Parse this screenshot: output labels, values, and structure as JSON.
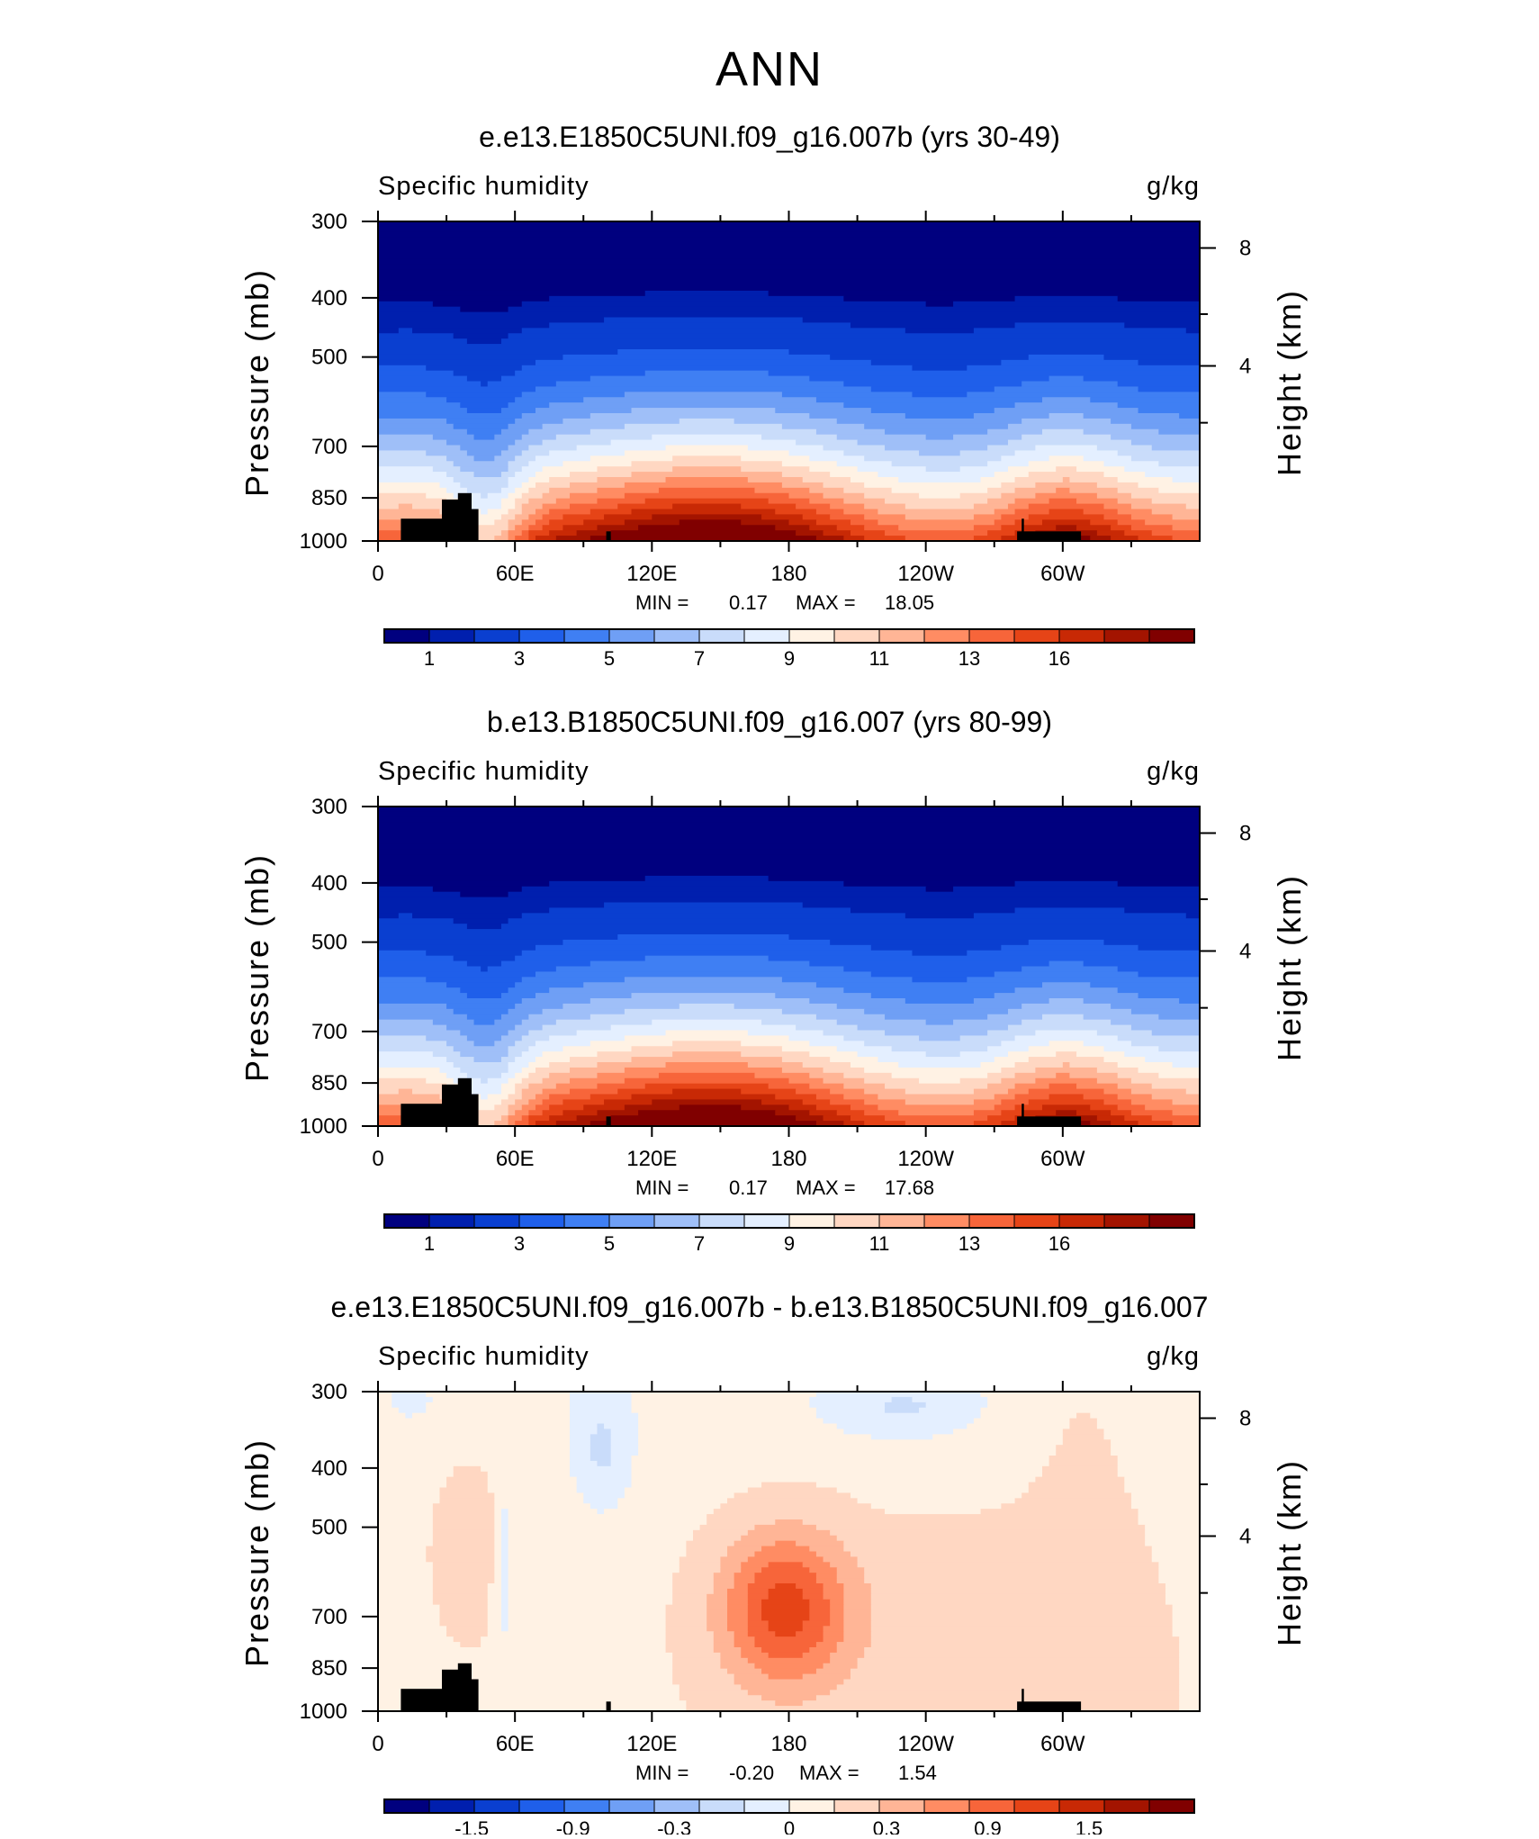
{
  "figure": {
    "title": "ANN"
  },
  "colors": {
    "scale": [
      "#00007f",
      "#001fae",
      "#0a3fd0",
      "#1f5fea",
      "#3f7ff3",
      "#6f9ff5",
      "#9fbff8",
      "#c9dcfa",
      "#e4efff",
      "#fff2e4",
      "#ffd7c2",
      "#ffb596",
      "#ff8c63",
      "#f7653a",
      "#e64417",
      "#c82905",
      "#a31400",
      "#800000"
    ],
    "topography": "#000000",
    "frame": "#000000"
  },
  "chart_data": [
    {
      "type": "heatmap",
      "title": "e.e13.E1850C5UNI.f09_g16.007b (yrs 30-49)",
      "left_label": "Specific humidity",
      "right_label": "g/kg",
      "ylabel": "Pressure (mb)",
      "ylabel_right": "Height (km)",
      "x_ticks": [
        "0",
        "60E",
        "120E",
        "180",
        "120W",
        "60W"
      ],
      "y_ticks": [
        "300",
        "400",
        "500",
        "700",
        "850",
        "1000"
      ],
      "y2_ticks": [
        "8",
        "4"
      ],
      "ylim": [
        1000,
        300
      ],
      "xlim": [
        0,
        360
      ],
      "min_label": "MIN =",
      "min_value": "0.17",
      "max_label": "MAX =",
      "max_value": "18.05",
      "colorbar_labels": [
        "1",
        "3",
        "5",
        "7",
        "9",
        "11",
        "13",
        "16"
      ],
      "kind": "abs"
    },
    {
      "type": "heatmap",
      "title": "b.e13.B1850C5UNI.f09_g16.007 (yrs 80-99)",
      "left_label": "Specific humidity",
      "right_label": "g/kg",
      "ylabel": "Pressure (mb)",
      "ylabel_right": "Height (km)",
      "x_ticks": [
        "0",
        "60E",
        "120E",
        "180",
        "120W",
        "60W"
      ],
      "y_ticks": [
        "300",
        "400",
        "500",
        "700",
        "850",
        "1000"
      ],
      "y2_ticks": [
        "8",
        "4"
      ],
      "ylim": [
        1000,
        300
      ],
      "xlim": [
        0,
        360
      ],
      "min_label": "MIN =",
      "min_value": "0.17",
      "max_label": "MAX =",
      "max_value": "17.68",
      "colorbar_labels": [
        "1",
        "3",
        "5",
        "7",
        "9",
        "11",
        "13",
        "16"
      ],
      "kind": "abs"
    },
    {
      "type": "heatmap",
      "title": "e.e13.E1850C5UNI.f09_g16.007b - b.e13.B1850C5UNI.f09_g16.007",
      "left_label": "Specific humidity",
      "right_label": "g/kg",
      "ylabel": "Pressure (mb)",
      "ylabel_right": "Height (km)",
      "x_ticks": [
        "0",
        "60E",
        "120E",
        "180",
        "120W",
        "60W"
      ],
      "y_ticks": [
        "300",
        "400",
        "500",
        "700",
        "850",
        "1000"
      ],
      "y2_ticks": [
        "8",
        "4"
      ],
      "ylim": [
        1000,
        300
      ],
      "xlim": [
        0,
        360
      ],
      "min_label": "MIN =",
      "min_value": "-0.20",
      "max_label": "MAX =",
      "max_value": "1.54",
      "colorbar_labels": [
        "-1.5",
        "-0.9",
        "-0.3",
        "0",
        "0.3",
        "0.9",
        "1.5"
      ],
      "kind": "diff"
    }
  ]
}
